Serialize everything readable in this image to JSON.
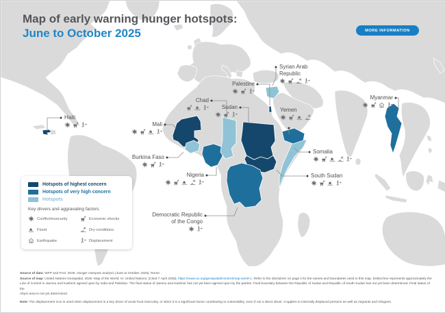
{
  "header": {
    "title_line1": "Map of early warning hunger hotspots:",
    "title_line2": "June to October 2025",
    "more_info_label": "MORE INFORMATION"
  },
  "legend": {
    "tiers": [
      {
        "id": "highest",
        "label": "Hotspots of highest concern",
        "color": "#14476b"
      },
      {
        "id": "very_high",
        "label": "Hotspots of very high concern",
        "color": "#1f6f9c"
      },
      {
        "id": "hotspot",
        "label": "Hotspots",
        "color": "#8fc3d5"
      }
    ],
    "drivers_heading": "Key drivers and aggravating factors",
    "drivers": [
      {
        "id": "conflict",
        "label": "Conflict/insecurity",
        "icon": "conflict-icon"
      },
      {
        "id": "economic",
        "label": "Economic shocks",
        "icon": "economic-shocks-icon"
      },
      {
        "id": "flood",
        "label": "Flood",
        "icon": "flood-icon"
      },
      {
        "id": "dry",
        "label": "Dry conditions",
        "icon": "dry-conditions-icon"
      },
      {
        "id": "earthquake",
        "label": "Earthquake",
        "icon": "earthquake-icon"
      },
      {
        "id": "displacement",
        "label": "Displacement",
        "icon": "displacement-icon"
      }
    ]
  },
  "map": {
    "countries": [
      {
        "name": "Haiti",
        "tier": "highest",
        "drivers": [
          "conflict",
          "economic",
          "displacement"
        ]
      },
      {
        "name": "Mali",
        "tier": "highest",
        "drivers": [
          "conflict",
          "economic",
          "flood",
          "displacement"
        ]
      },
      {
        "name": "Burkina Faso",
        "tier": "hotspot",
        "drivers": [
          "conflict",
          "economic",
          "displacement"
        ]
      },
      {
        "name": "Nigeria",
        "tier": "very_high",
        "drivers": [
          "conflict",
          "economic",
          "flood",
          "dry",
          "displacement"
        ]
      },
      {
        "name": "Chad",
        "tier": "hotspot",
        "drivers": [
          "economic",
          "flood",
          "displacement"
        ]
      },
      {
        "name": "Sudan",
        "tier": "highest",
        "drivers": [
          "conflict",
          "economic",
          "displacement"
        ]
      },
      {
        "name": "Palestine",
        "tier": "highest",
        "drivers": [
          "conflict",
          "economic",
          "displacement"
        ]
      },
      {
        "name": "Syrian Arab Republic",
        "tier": "hotspot",
        "drivers": [
          "conflict",
          "economic",
          "dry",
          "displacement"
        ]
      },
      {
        "name": "Yemen",
        "tier": "very_high",
        "drivers": [
          "conflict",
          "economic",
          "flood",
          "dry"
        ]
      },
      {
        "name": "Somalia",
        "tier": "hotspot",
        "drivers": [
          "conflict",
          "economic",
          "flood",
          "dry",
          "displacement"
        ]
      },
      {
        "name": "South Sudan",
        "tier": "highest",
        "drivers": [
          "conflict",
          "economic",
          "flood",
          "displacement"
        ]
      },
      {
        "name": "Myanmar",
        "tier": "very_high",
        "drivers": [
          "conflict",
          "economic",
          "earthquake",
          "displacement"
        ]
      },
      {
        "name": "Democratic Republic of the Congo",
        "tier": "very_high",
        "drivers": [
          "conflict",
          "displacement"
        ]
      }
    ]
  },
  "footer": {
    "line1": {
      "label": "Source of data:",
      "pre": " WFP and FAO. 2025. ",
      "italic": "Hunger Hotspots analysis (June to October 2025).",
      "post": " Rome."
    },
    "line2": {
      "label": "Source of map:",
      "pre": " United Nations Geospatial. 2025. Map of the World. In: United Nations. [Cited 7 April 2025]. ",
      "link": "https://www.un.org/geospatial/content/map-world-1",
      "post": ". Refer to the disclaimer on page ii for the names and boundaries used in this map. Dotted line represents approximately the"
    },
    "line3": "Line of Control in Jammu and Kashmir agreed upon by India and Pakistan. The final status of Jammu and Kashmir has not yet been agreed upon by the parties. Final boundary between the Republic of Sudan and Republic of South Sudan has not yet been determined. Final status of the",
    "line4": "Abyei area is not yet determined.",
    "note": {
      "label": "Note:",
      "text": " The displacement icon is used when displacement is a key driver of acute food insecurity, or when it is a significant factor contributing to vulnerability, even if not a direct driver. It applies to internally displaced persons as well as migrants and refugees."
    }
  }
}
